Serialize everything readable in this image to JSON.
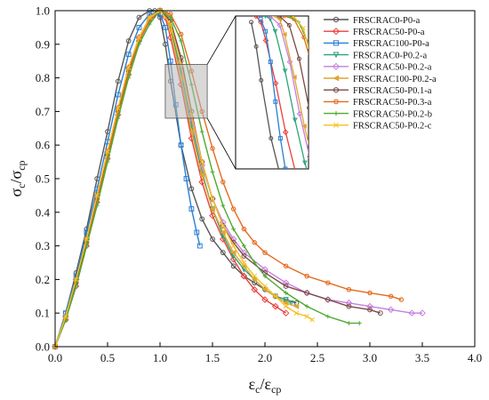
{
  "chart_data": {
    "type": "line",
    "xlabel": {
      "main": "ε",
      "sub1": "c",
      "sep": "/",
      "main2": "ε",
      "sub2": "cp"
    },
    "ylabel": {
      "main": "σ",
      "sub1": "c",
      "sep": "/",
      "main2": "σ",
      "sub2": "cp"
    },
    "xlim": [
      0.0,
      4.0
    ],
    "ylim": [
      0.0,
      1.0
    ],
    "xticks": [
      "0.0",
      "0.5",
      "1.0",
      "1.5",
      "2.0",
      "2.5",
      "3.0",
      "3.5",
      "4.0"
    ],
    "yticks": [
      "0.0",
      "0.1",
      "0.2",
      "0.3",
      "0.4",
      "0.5",
      "0.6",
      "0.7",
      "0.8",
      "0.9",
      "1.0"
    ],
    "grid": false,
    "legend_position": "top-right",
    "inset": {
      "source_x": [
        1.05,
        1.45
      ],
      "source_y": [
        0.68,
        0.84
      ],
      "x_range": [
        1.7,
        2.4
      ],
      "y_range": [
        0.5,
        1.0
      ]
    },
    "series": [
      {
        "name": "FRSCRAC0-P0-a",
        "color": "#555555",
        "marker": "circle",
        "x": [
          0.0,
          0.1,
          0.2,
          0.3,
          0.4,
          0.5,
          0.6,
          0.7,
          0.8,
          0.9,
          0.95,
          1.0,
          1.05,
          1.1,
          1.2,
          1.3,
          1.4,
          1.5,
          1.6,
          1.7,
          1.8,
          1.9,
          2.0,
          2.1,
          2.2,
          2.3
        ],
        "y": [
          0.0,
          0.1,
          0.22,
          0.35,
          0.5,
          0.64,
          0.79,
          0.91,
          0.98,
          1.0,
          1.0,
          0.98,
          0.9,
          0.79,
          0.6,
          0.47,
          0.38,
          0.32,
          0.28,
          0.24,
          0.21,
          0.19,
          0.17,
          0.15,
          0.14,
          0.13
        ]
      },
      {
        "name": "FRSCRAC50-P0-a",
        "color": "#e8413c",
        "marker": "diamond",
        "x": [
          0.0,
          0.1,
          0.2,
          0.3,
          0.4,
          0.5,
          0.6,
          0.7,
          0.8,
          0.9,
          1.0,
          1.05,
          1.1,
          1.2,
          1.3,
          1.4,
          1.5,
          1.6,
          1.7,
          1.8,
          1.9,
          2.0,
          2.1,
          2.2
        ],
        "y": [
          0.0,
          0.09,
          0.2,
          0.32,
          0.45,
          0.58,
          0.71,
          0.83,
          0.92,
          0.98,
          1.0,
          0.98,
          0.92,
          0.78,
          0.62,
          0.49,
          0.39,
          0.32,
          0.26,
          0.21,
          0.17,
          0.14,
          0.12,
          0.1
        ]
      },
      {
        "name": "FRSCRAC100-P0-a",
        "color": "#2a7fd4",
        "marker": "square",
        "x": [
          0.0,
          0.1,
          0.2,
          0.3,
          0.4,
          0.5,
          0.6,
          0.7,
          0.8,
          0.9,
          1.0,
          1.05,
          1.1,
          1.15,
          1.2,
          1.25,
          1.3,
          1.35,
          1.38
        ],
        "y": [
          0.0,
          0.1,
          0.21,
          0.34,
          0.47,
          0.61,
          0.75,
          0.87,
          0.95,
          0.99,
          0.99,
          0.95,
          0.85,
          0.72,
          0.6,
          0.5,
          0.41,
          0.34,
          0.3
        ]
      },
      {
        "name": "FRSCRAC0-P0.2-a",
        "color": "#2aa57a",
        "marker": "triangle-down",
        "x": [
          0.0,
          0.1,
          0.2,
          0.3,
          0.4,
          0.5,
          0.6,
          0.7,
          0.8,
          0.9,
          1.0,
          1.05,
          1.1,
          1.2,
          1.3,
          1.4,
          1.5,
          1.6,
          1.7,
          1.8,
          1.9,
          2.0,
          2.1,
          2.2,
          2.25
        ],
        "y": [
          0.0,
          0.08,
          0.19,
          0.31,
          0.44,
          0.57,
          0.7,
          0.82,
          0.91,
          0.97,
          1.0,
          0.99,
          0.95,
          0.82,
          0.66,
          0.52,
          0.41,
          0.33,
          0.27,
          0.23,
          0.2,
          0.17,
          0.15,
          0.14,
          0.13
        ]
      },
      {
        "name": "FRSCRAC50-P0.2-a",
        "color": "#c77ee0",
        "marker": "diamond",
        "x": [
          0.0,
          0.1,
          0.2,
          0.3,
          0.4,
          0.5,
          0.6,
          0.7,
          0.8,
          0.9,
          1.0,
          1.1,
          1.2,
          1.3,
          1.4,
          1.5,
          1.6,
          1.7,
          1.8,
          2.0,
          2.2,
          2.4,
          2.6,
          2.8,
          3.0,
          3.2,
          3.4,
          3.5
        ],
        "y": [
          0.0,
          0.08,
          0.18,
          0.3,
          0.43,
          0.56,
          0.69,
          0.81,
          0.91,
          0.97,
          1.0,
          0.97,
          0.85,
          0.68,
          0.54,
          0.44,
          0.37,
          0.32,
          0.28,
          0.23,
          0.19,
          0.16,
          0.14,
          0.13,
          0.12,
          0.11,
          0.1,
          0.1
        ]
      },
      {
        "name": "FRSCRAC100-P0.2-a",
        "color": "#e0a531",
        "marker": "triangle-left",
        "x": [
          0.0,
          0.1,
          0.2,
          0.3,
          0.4,
          0.5,
          0.6,
          0.7,
          0.8,
          0.9,
          1.0,
          1.05,
          1.1,
          1.2,
          1.3,
          1.4,
          1.5,
          1.6,
          1.7,
          1.8,
          1.9,
          2.0,
          2.1,
          2.2,
          2.3
        ],
        "y": [
          0.0,
          0.09,
          0.2,
          0.32,
          0.45,
          0.58,
          0.71,
          0.83,
          0.92,
          0.98,
          1.0,
          0.99,
          0.94,
          0.8,
          0.64,
          0.51,
          0.41,
          0.34,
          0.28,
          0.24,
          0.2,
          0.17,
          0.15,
          0.13,
          0.12
        ]
      },
      {
        "name": "FRSCRAC50-P0.1-a",
        "color": "#7a4a45",
        "marker": "circle",
        "x": [
          0.0,
          0.1,
          0.2,
          0.3,
          0.4,
          0.5,
          0.6,
          0.7,
          0.8,
          0.9,
          1.0,
          1.1,
          1.2,
          1.3,
          1.4,
          1.5,
          1.6,
          1.7,
          1.8,
          2.0,
          2.2,
          2.4,
          2.6,
          2.8,
          3.0,
          3.1
        ],
        "y": [
          0.0,
          0.08,
          0.19,
          0.31,
          0.44,
          0.57,
          0.7,
          0.82,
          0.91,
          0.97,
          1.0,
          0.97,
          0.86,
          0.7,
          0.55,
          0.44,
          0.36,
          0.31,
          0.27,
          0.22,
          0.18,
          0.16,
          0.14,
          0.12,
          0.11,
          0.1
        ]
      },
      {
        "name": "FRSCRAC50-P0.3-a",
        "color": "#e56a1f",
        "marker": "hexagon",
        "x": [
          0.0,
          0.1,
          0.2,
          0.3,
          0.4,
          0.5,
          0.6,
          0.7,
          0.8,
          0.9,
          1.0,
          1.1,
          1.2,
          1.3,
          1.4,
          1.5,
          1.6,
          1.7,
          1.8,
          1.9,
          2.0,
          2.2,
          2.4,
          2.6,
          2.8,
          3.0,
          3.2,
          3.3
        ],
        "y": [
          0.0,
          0.08,
          0.18,
          0.3,
          0.43,
          0.56,
          0.69,
          0.81,
          0.91,
          0.97,
          1.0,
          0.99,
          0.93,
          0.82,
          0.7,
          0.59,
          0.49,
          0.41,
          0.35,
          0.31,
          0.28,
          0.24,
          0.21,
          0.19,
          0.17,
          0.16,
          0.15,
          0.14
        ]
      },
      {
        "name": "FRSCRAC50-P0.2-b",
        "color": "#4cab2e",
        "marker": "plus",
        "x": [
          0.0,
          0.1,
          0.2,
          0.3,
          0.4,
          0.5,
          0.6,
          0.7,
          0.8,
          0.9,
          1.0,
          1.1,
          1.2,
          1.3,
          1.4,
          1.5,
          1.6,
          1.7,
          1.8,
          1.9,
          2.0,
          2.2,
          2.4,
          2.6,
          2.8,
          2.9
        ],
        "y": [
          0.0,
          0.08,
          0.18,
          0.3,
          0.42,
          0.55,
          0.68,
          0.8,
          0.9,
          0.96,
          1.0,
          0.98,
          0.91,
          0.78,
          0.64,
          0.52,
          0.42,
          0.35,
          0.3,
          0.25,
          0.21,
          0.16,
          0.12,
          0.09,
          0.07,
          0.07
        ]
      },
      {
        "name": "FRSCRAC50-P0.2-c",
        "color": "#f5c022",
        "marker": "x",
        "x": [
          0.0,
          0.1,
          0.2,
          0.3,
          0.4,
          0.5,
          0.6,
          0.7,
          0.8,
          0.9,
          1.0,
          1.1,
          1.2,
          1.3,
          1.4,
          1.5,
          1.6,
          1.7,
          1.8,
          1.9,
          2.0,
          2.1,
          2.2,
          2.3,
          2.4,
          2.45
        ],
        "y": [
          0.0,
          0.09,
          0.2,
          0.32,
          0.45,
          0.58,
          0.71,
          0.83,
          0.92,
          0.98,
          1.0,
          0.96,
          0.84,
          0.69,
          0.55,
          0.44,
          0.36,
          0.3,
          0.25,
          0.21,
          0.18,
          0.15,
          0.12,
          0.1,
          0.09,
          0.08
        ]
      }
    ]
  }
}
